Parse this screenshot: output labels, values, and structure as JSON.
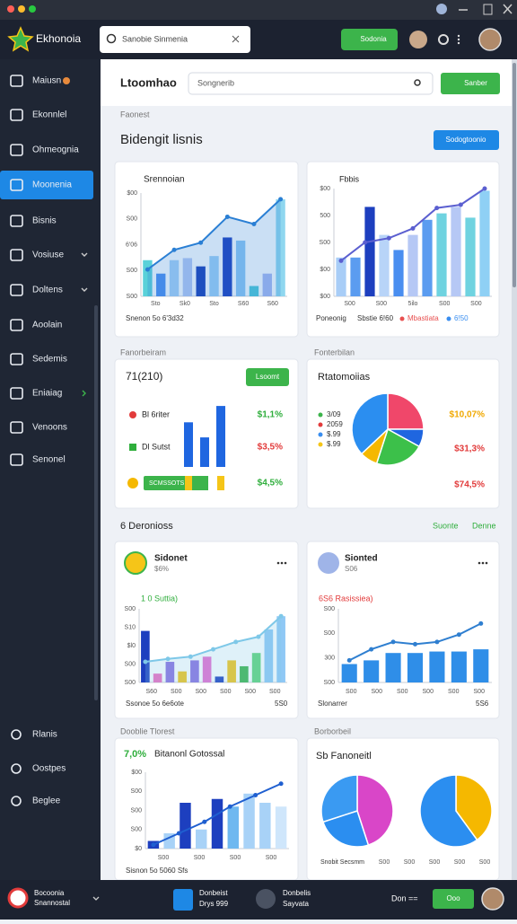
{
  "header": {
    "app_name": "Ekhonoia",
    "search": "Sanobie Sinmenia",
    "button": "Sodonia"
  },
  "sidebar": {
    "items": [
      "Maiusn",
      "Ekonnlel",
      "Ohmeognia",
      "Moonenia",
      "Bisnis",
      "Vosiuse",
      "Doltens",
      "Aoolain",
      "Sedemis",
      "Eniaiag",
      "Venoons",
      "Senonel"
    ],
    "active": 3,
    "bottom_items": [
      "Rlanis",
      "Oostpes",
      "Beglee"
    ]
  },
  "topbar": {
    "title": "Ltoomhao",
    "search": "Songnerib",
    "button": "Sanber"
  },
  "section": {
    "label": "Faonest",
    "title": "Bidengit lisnis",
    "button": "Sodogtoonio"
  },
  "row1": [
    {
      "title": "Srennoian",
      "chart": {
        "ylim": [
          0,
          100
        ],
        "y_labels": [
          "S00",
          "S00",
          "6'06",
          "S00",
          "$00"
        ],
        "x_labels": [
          "Sto",
          "Sk0",
          "Sto",
          "S60",
          "S60"
        ],
        "bars": [
          35,
          22,
          35,
          37,
          29,
          39,
          57,
          54,
          10,
          22,
          94
        ],
        "bar_colors": [
          "#5ad1d9",
          "#4e8ff0",
          "#a8d2f7",
          "#b6c8f5",
          "#1a3fb8",
          "#9fd0f7",
          "#1d3fbf",
          "#8ec7f5",
          "#4fc9d8",
          "#a9b9f2",
          "#8fd7ef"
        ],
        "line": [
          26,
          45,
          52,
          77,
          70,
          94
        ],
        "line_color": "#2a7fd4",
        "area": true
      },
      "footer": "Snenon 5o 6'3d32"
    },
    {
      "title": "Fbbis",
      "chart": {
        "ylim": [
          0,
          100
        ],
        "y_labels": [
          "$00",
          "$00",
          "S00",
          "500",
          "$00"
        ],
        "x_labels": [
          "S00",
          "S00",
          "5ilo",
          "S00",
          "S00"
        ],
        "bars": [
          36,
          36,
          83,
          57,
          43,
          57,
          71,
          77,
          83,
          73,
          98
        ],
        "bar_colors": [
          "#a8cdf7",
          "#5b9cf0",
          "#1d3fbf",
          "#b8d4f8",
          "#4a8ef0",
          "#b6c8f5",
          "#5b9cf0",
          "#6fd3e0",
          "#b6c8f5",
          "#6fd3e0",
          "#8fd0f5"
        ],
        "line": [
          33,
          50,
          54,
          63,
          82,
          85,
          100
        ],
        "line_color": "#5b5fd0",
        "area": false
      },
      "footer": "Poneonig",
      "footer2": "Sbstie 6!60",
      "legend": [
        {
          "label": "Mbastiata",
          "color": "#e85050"
        },
        {
          "label": "6!50",
          "color": "#3a8ef0"
        }
      ]
    }
  ],
  "row2_labels": [
    "Fanorbeiram",
    "Fonterbilan"
  ],
  "row2": [
    {
      "title": "71(210)",
      "button": "Lsoomt",
      "items": [
        {
          "label": "Bl 6riter",
          "color": "#e23b3b",
          "value": "$1,1%",
          "value_color": "#2fae3c"
        },
        {
          "label": "Dl Sutst",
          "color": "#2fae3c",
          "value": "$3,5%",
          "value_color": "#e23b3b"
        },
        {
          "label": "SCMSSOTS",
          "color": "#f5b800",
          "value": "$4,5%",
          "value_color": "#2fae3c"
        }
      ],
      "chart": {
        "ylim": [
          0,
          100
        ],
        "bars": [
          71,
          47,
          97
        ],
        "bar_color": "#1f66e0",
        "blocks": [
          "#f5c518",
          "#3cb44b",
          "#f5c518"
        ]
      }
    },
    {
      "title": "Rtatomoiias",
      "legend": [
        {
          "label": "3/09",
          "color": "#3cb44b"
        },
        {
          "label": "2059",
          "color": "#e23b3b"
        },
        {
          "label": "$.99",
          "color": "#3a8ef0"
        },
        {
          "label": "$.99",
          "color": "#f5c518"
        }
      ],
      "pie": {
        "values": [
          25,
          8,
          22,
          8,
          37
        ],
        "colors": [
          "#f0476a",
          "#1f66e0",
          "#3cc04a",
          "#f5b800",
          "#2b8ef0"
        ]
      },
      "values": [
        {
          "text": "$10,07%",
          "color": "#f0a800"
        },
        {
          "text": "$31,3%",
          "color": "#e23b3b"
        },
        {
          "text": "$74,5%",
          "color": "#e23b3b"
        }
      ]
    }
  ],
  "row3_head": {
    "title": "6 Deronioss",
    "links": [
      "Suonte",
      "Denne"
    ]
  },
  "row3": [
    {
      "title": "Sidonet",
      "subtitle": "$6%",
      "label": "1 0 Suttia)",
      "label_color": "#2fae3c",
      "footer": "Ssonoe 5o 6e6ote",
      "footer_right": "5S0",
      "chart": {
        "ylim": [
          0,
          100
        ],
        "y_labels": [
          "S00",
          "S00",
          "$l0",
          "S10",
          "S00"
        ],
        "x_labels": [
          "S60",
          "S00",
          "S00",
          "S00",
          "S00",
          "S00"
        ],
        "bars": [
          70,
          12,
          28,
          15,
          30,
          35,
          8,
          30,
          22,
          40,
          72,
          90
        ],
        "bar_colors": [
          "#1d3fbf",
          "#f06bc0",
          "#8b6fe0",
          "#f5c518",
          "#8b6fe0",
          "#e86bd0",
          "#1d3fbf",
          "#f5c518",
          "#3cb44b",
          "#5fd47a",
          "#8fc8f5",
          "#8fc8f5"
        ],
        "line": [
          28,
          32,
          35,
          45,
          55,
          62,
          90
        ],
        "line_color": "#7ec8e8",
        "area": true
      }
    },
    {
      "title": "Sionted",
      "subtitle": "S06",
      "label": "6S6 Rasissiea)",
      "label_color": "#e23b3b",
      "footer": "Slonarrer",
      "footer_right": "5S6",
      "chart": {
        "ylim": [
          0,
          100
        ],
        "y_labels": [
          "S00",
          "300",
          "S00",
          "S00"
        ],
        "x_labels": [
          "S00",
          "S00",
          "S00",
          "S00",
          "S00",
          "S00"
        ],
        "bars": [
          25,
          30,
          40,
          40,
          42,
          42,
          45
        ],
        "bar_colors": [
          "#2f8ee8",
          "#2f8ee8",
          "#2f8ee8",
          "#2f8ee8",
          "#2f8ee8",
          "#2f8ee8",
          "#2f8ee8"
        ],
        "line": [
          30,
          45,
          55,
          52,
          55,
          65,
          80
        ],
        "line_color": "#2f7fd0",
        "area": false
      }
    }
  ],
  "row4_labels": [
    "Dooblie Tlorest",
    "Borborbeil"
  ],
  "row4": [
    {
      "label": "7,0%",
      "title": "Bitanonl Gotossal",
      "footer": "Sisnon 5o 5060 Sfs",
      "chart": {
        "ylim": [
          0,
          100
        ],
        "y_labels": [
          "$0",
          "S00",
          "S00",
          "S00",
          "$00"
        ],
        "x_labels": [
          "S00",
          "S00",
          "S00",
          "S00"
        ],
        "bars": [
          10,
          20,
          60,
          25,
          65,
          55,
          72,
          60,
          55
        ],
        "bar_colors": [
          "#1d3fbf",
          "#a8d2f7",
          "#1d3fbf",
          "#a8d2f7",
          "#1d3fbf",
          "#6fb8f0",
          "#a8d2f7",
          "#a8d2f7",
          "#cfe6fb"
        ],
        "line": [
          5,
          20,
          35,
          55,
          70,
          85
        ],
        "line_color": "#1f5fd0",
        "area": false
      }
    },
    {
      "title": "Sb Fanoneitl",
      "footer": "Snobit Secsmm",
      "x_labels": [
        "S00",
        "S00",
        "S00",
        "S00",
        "S00"
      ],
      "pies": [
        {
          "values": [
            45,
            25,
            30
          ],
          "colors": [
            "#d946c8",
            "#2b8ef0",
            "#3a9af2"
          ]
        },
        {
          "values": [
            40,
            60
          ],
          "colors": [
            "#f5b800",
            "#2b8ef0"
          ]
        }
      ]
    }
  ],
  "bottom": {
    "brand": [
      "Bocoonia",
      "Snannostal"
    ],
    "items": [
      [
        "Donbeist",
        "Drys 999"
      ],
      [
        "Donbelis",
        "Sayvata"
      ]
    ],
    "status": "Don ==",
    "button": "Ooo"
  }
}
